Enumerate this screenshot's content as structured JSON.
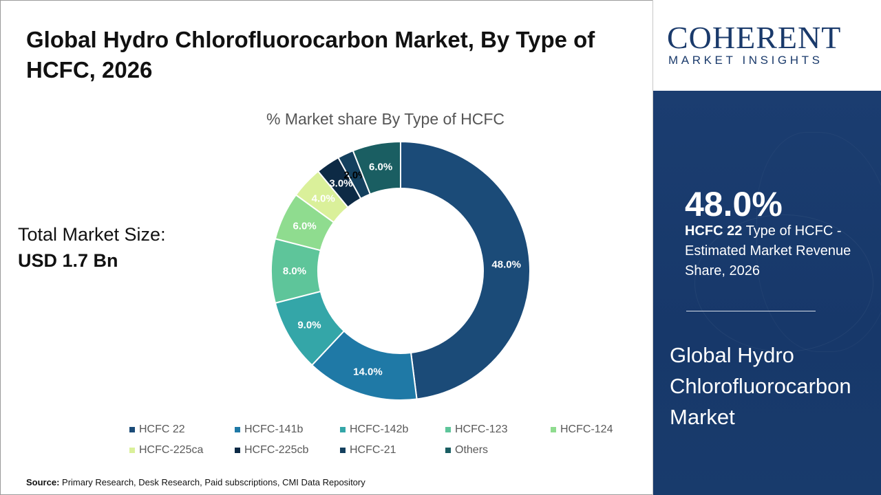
{
  "title": "Global Hydro Chlorofluorocarbon Market, By Type of HCFC, 2026",
  "total_market": {
    "label": "Total Market Size:",
    "value": "USD 1.7 Bn"
  },
  "source": {
    "label": "Source:",
    "text": "Primary Research, Desk Research, Paid subscriptions, CMI Data Repository"
  },
  "logo": {
    "main": "COHERENT",
    "sub": "MARKET INSIGHTS"
  },
  "highlight": {
    "value": "48.0%",
    "segment": "HCFC 22",
    "description": "Type of HCFC - Estimated Market Revenue Share, 2026"
  },
  "panel_title": "Global Hydro Chlorofluorocarbon Market",
  "chart_data": {
    "type": "pie",
    "title": "% Market share By Type of HCFC",
    "categories": [
      "HCFC 22",
      "HCFC-141b",
      "HCFC-142b",
      "HCFC-123",
      "HCFC-124",
      "HCFC-225ca",
      "HCFC-225cb",
      "HCFC-21",
      "Others"
    ],
    "values": [
      48.0,
      14.0,
      9.0,
      8.0,
      6.0,
      4.0,
      3.0,
      2.0,
      6.0
    ],
    "value_labels": [
      "48.0%",
      "14.0%",
      "9.0%",
      "8.0%",
      "6.0%",
      "4.0%",
      "3.0%",
      "2.0%",
      "6.0%"
    ],
    "colors": [
      "#1b4b78",
      "#1f79a6",
      "#34a6a8",
      "#5ec59a",
      "#8fdc8f",
      "#daf09a",
      "#0d2a45",
      "#14405e",
      "#1a5e62"
    ],
    "label_colors": [
      "#ffffff",
      "#ffffff",
      "#ffffff",
      "#ffffff",
      "#ffffff",
      "#ffffff",
      "#ffffff",
      "#000000",
      "#ffffff"
    ],
    "donut": true,
    "legend_position": "bottom"
  }
}
